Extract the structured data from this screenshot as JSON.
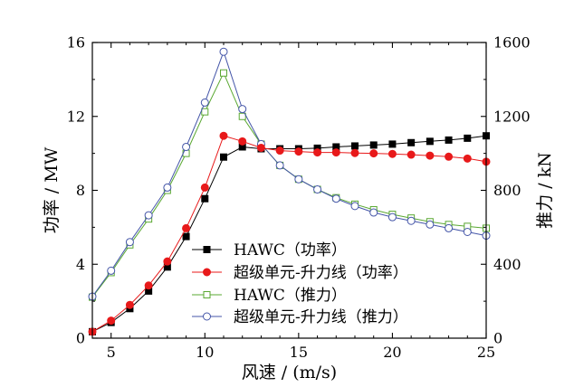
{
  "chart_data": {
    "type": "line",
    "title": "",
    "xlabel": "风速 / (m/s)",
    "ylabel_left": "功率 / MW",
    "ylabel_right": "推力 / kN",
    "xlim": [
      4,
      25
    ],
    "ylim_left": [
      0,
      16
    ],
    "ylim_right": [
      0,
      1600
    ],
    "xticks": [
      5,
      10,
      15,
      20,
      25
    ],
    "yticks_left": [
      0,
      4,
      8,
      12,
      16
    ],
    "yticks_right": [
      0,
      400,
      800,
      1200,
      1600
    ],
    "grid": false,
    "legend_position": "lower-center",
    "x": [
      4,
      5,
      6,
      7,
      8,
      9,
      10,
      11,
      12,
      13,
      14,
      15,
      16,
      17,
      18,
      19,
      20,
      21,
      22,
      23,
      24,
      25
    ],
    "series": [
      {
        "name": "HAWC（功率）",
        "axis": "left",
        "color": "#000000",
        "marker": "filled-square",
        "values": [
          0.35,
          0.85,
          1.6,
          2.55,
          3.85,
          5.5,
          7.55,
          9.8,
          10.35,
          10.25,
          10.25,
          10.25,
          10.28,
          10.35,
          10.4,
          10.45,
          10.5,
          10.58,
          10.65,
          10.72,
          10.82,
          10.95
        ]
      },
      {
        "name": "超级单元-升力线（功率）",
        "axis": "left",
        "color": "#e8191a",
        "marker": "filled-circle",
        "values": [
          0.35,
          0.95,
          1.8,
          2.85,
          4.15,
          5.95,
          8.15,
          10.95,
          10.65,
          10.3,
          10.15,
          10.1,
          10.05,
          10.05,
          10.02,
          10.0,
          9.97,
          9.93,
          9.88,
          9.82,
          9.72,
          9.55
        ]
      },
      {
        "name": "HAWC（推力）",
        "axis": "right",
        "color": "#5aa832",
        "marker": "open-square",
        "values": [
          222,
          355,
          505,
          645,
          800,
          1000,
          1225,
          1435,
          1200,
          1050,
          935,
          860,
          805,
          760,
          725,
          695,
          670,
          650,
          630,
          615,
          605,
          595
        ]
      },
      {
        "name": "超级单元-升力线（推力）",
        "axis": "right",
        "color": "#4455a8",
        "marker": "open-circle",
        "values": [
          225,
          365,
          520,
          665,
          815,
          1035,
          1275,
          1550,
          1240,
          1050,
          935,
          860,
          805,
          755,
          715,
          680,
          655,
          635,
          615,
          595,
          575,
          555
        ]
      }
    ]
  }
}
